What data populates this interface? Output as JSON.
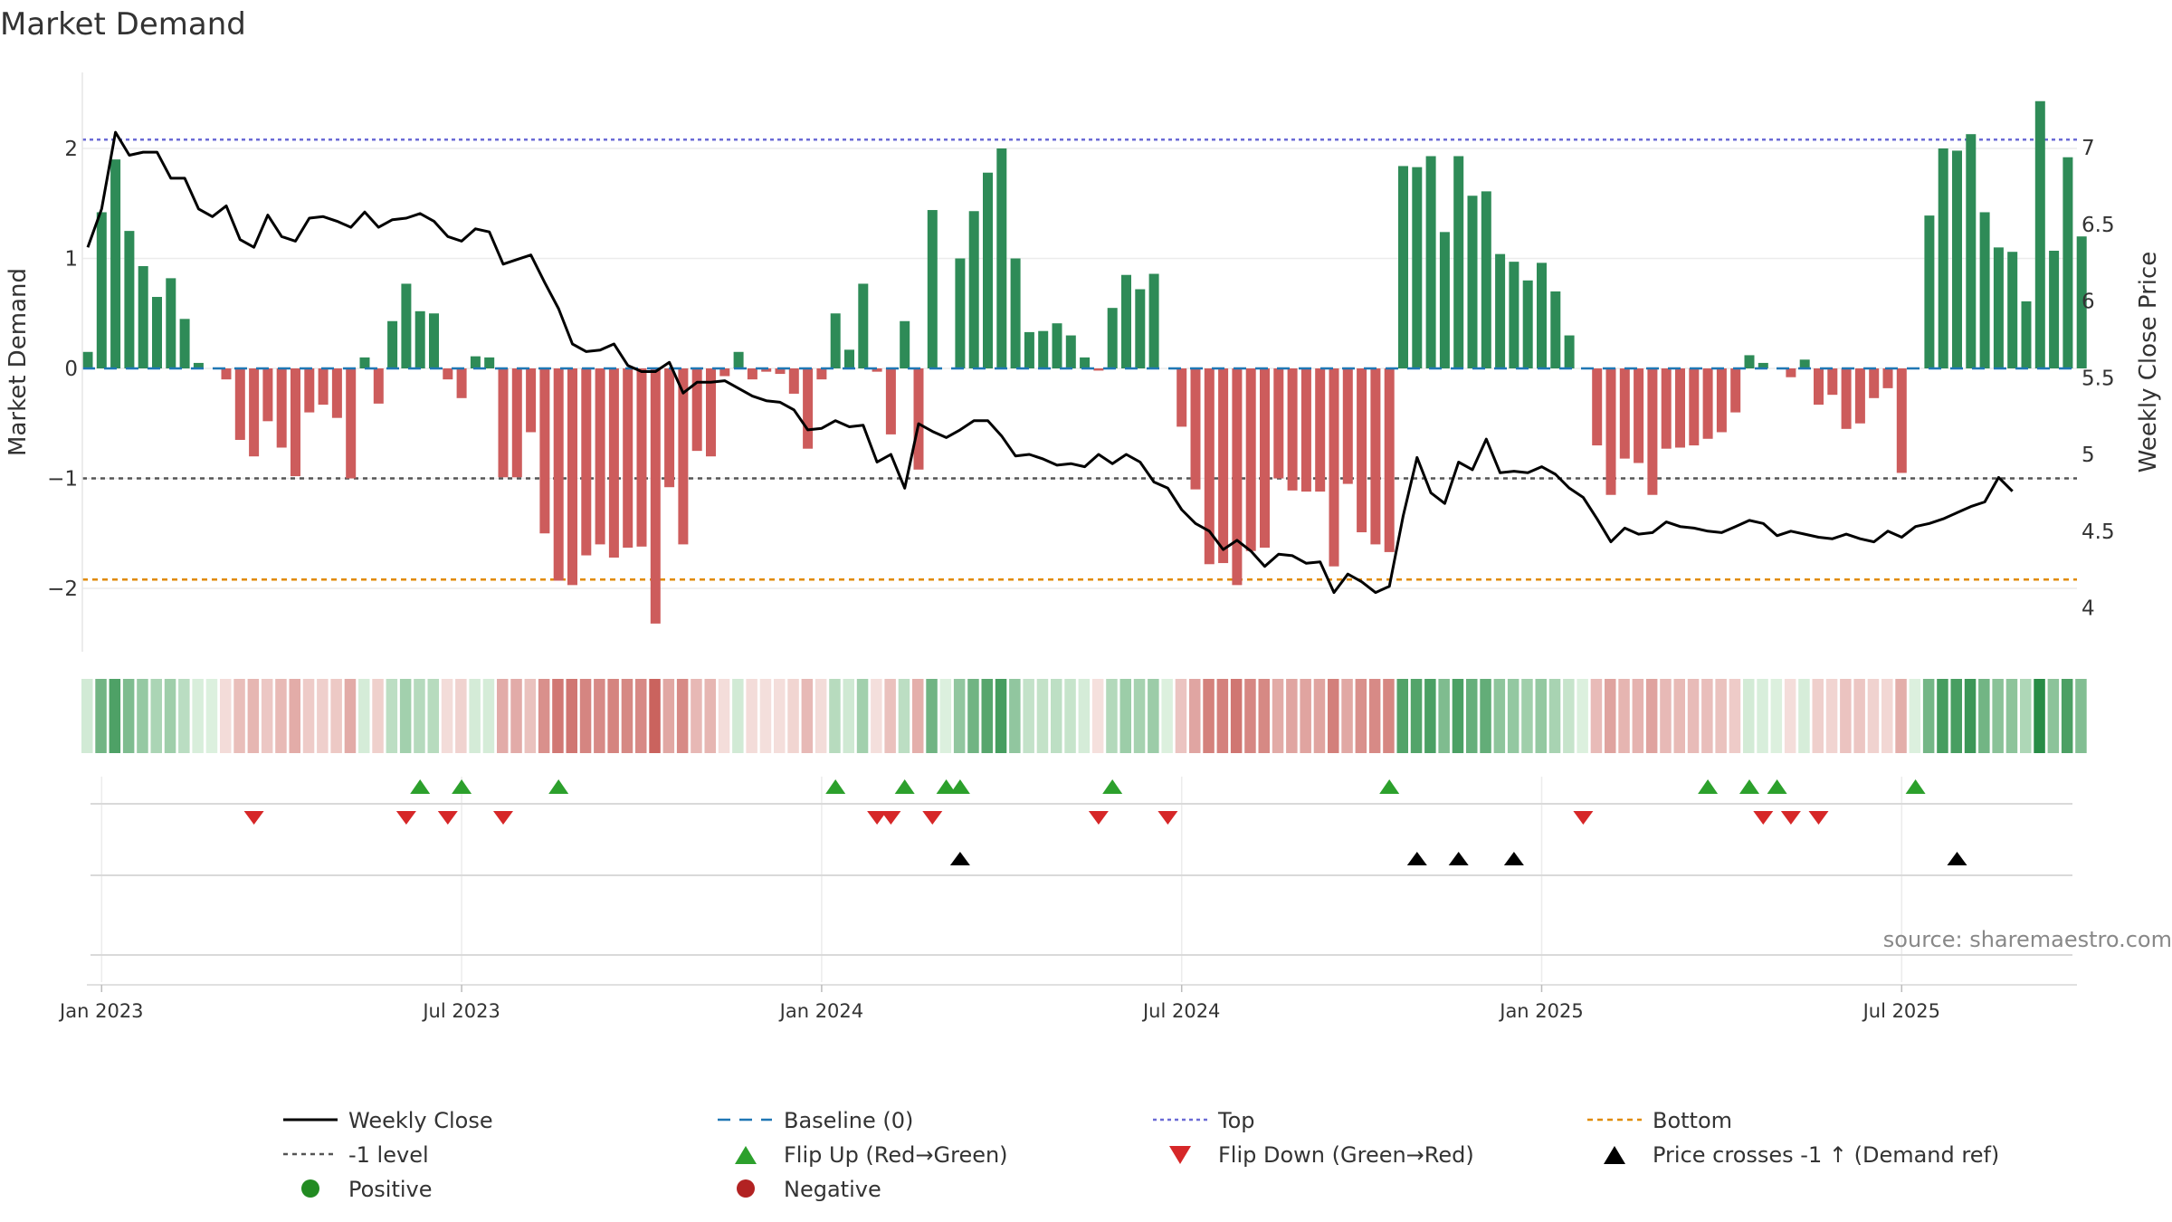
{
  "chart_data": [
    {
      "type": "bar",
      "title": "Market Demand",
      "ylabel": "Market Demand",
      "y2label": "Weekly Close Price",
      "ylim": [
        -2.6,
        2.7
      ],
      "y2lim": [
        3.85,
        7.35
      ],
      "yticks": [
        "2",
        "1",
        "0",
        "−1",
        "−2"
      ],
      "ytick_values": [
        2,
        1,
        0,
        -1,
        -2
      ],
      "y2ticks": [
        "7",
        "6.5",
        "6",
        "5.5",
        "5",
        "4.5",
        "4"
      ],
      "y2tick_values": [
        7,
        6.5,
        6,
        5.5,
        5,
        4.5,
        4
      ],
      "x_start_week_index": 0,
      "xticks": [
        "Jan 2023",
        "Jul 2023",
        "Jan 2024",
        "Jul 2024",
        "Jan 2025",
        "Jul 2025"
      ],
      "xtick_weeks": [
        1,
        27,
        53,
        79,
        105,
        131
      ],
      "reference_lines": {
        "baseline": 0,
        "top": 2.08,
        "minus_one": -1,
        "bottom": -1.92
      },
      "bar_values": [
        0.15,
        1.42,
        1.9,
        1.25,
        0.93,
        0.65,
        0.82,
        0.45,
        0.05,
        0,
        -0.1,
        -0.65,
        -0.8,
        -0.48,
        -0.72,
        -0.98,
        -0.4,
        -0.33,
        -0.45,
        -1.0,
        0.1,
        -0.32,
        0.43,
        0.77,
        0.52,
        0.5,
        -0.1,
        -0.27,
        0.11,
        0.1,
        -0.99,
        -0.99,
        -0.58,
        -1.5,
        -1.93,
        -1.97,
        -1.7,
        -1.6,
        -1.72,
        -1.63,
        -1.62,
        -2.32,
        -1.08,
        -1.6,
        -0.75,
        -0.8,
        -0.07,
        0.15,
        -0.1,
        -0.03,
        -0.05,
        -0.23,
        -0.73,
        -0.1,
        0.5,
        0.17,
        0.77,
        -0.03,
        -0.6,
        0.43,
        -0.92,
        1.44,
        0,
        1.0,
        1.43,
        1.78,
        2.0,
        1.0,
        0.33,
        0.34,
        0.41,
        0.3,
        0.1,
        -0.02,
        0.55,
        0.85,
        0.72,
        0.86,
        0,
        -0.53,
        -1.1,
        -1.78,
        -1.77,
        -1.97,
        -1.66,
        -1.63,
        -1.0,
        -1.11,
        -1.12,
        -1.12,
        -1.8,
        -1.05,
        -1.49,
        -1.6,
        -1.67,
        1.84,
        1.83,
        1.93,
        1.24,
        1.93,
        1.57,
        1.61,
        1.04,
        0.97,
        0.8,
        0.96,
        0.7,
        0.3,
        0,
        -0.7,
        -1.15,
        -0.82,
        -0.86,
        -1.15,
        -0.73,
        -0.72,
        -0.7,
        -0.64,
        -0.58,
        -0.4,
        0.12,
        0.05,
        0,
        -0.08,
        0.08,
        -0.33,
        -0.24,
        -0.55,
        -0.5,
        -0.27,
        -0.18,
        -0.95,
        0,
        1.39,
        2.0,
        1.98,
        2.13,
        1.42,
        1.1,
        1.06,
        0.61,
        2.43,
        1.07,
        1.92,
        1.2
      ],
      "price_values": [
        6.35,
        6.6,
        7.1,
        6.95,
        6.97,
        6.97,
        6.8,
        6.8,
        6.6,
        6.55,
        6.62,
        6.4,
        6.35,
        6.56,
        6.42,
        6.39,
        6.54,
        6.55,
        6.52,
        6.48,
        6.58,
        6.48,
        6.53,
        6.54,
        6.57,
        6.52,
        6.42,
        6.39,
        6.47,
        6.45,
        6.24,
        6.27,
        6.3,
        6.12,
        5.95,
        5.72,
        5.67,
        5.68,
        5.72,
        5.58,
        5.54,
        5.54,
        5.6,
        5.4,
        5.47,
        5.47,
        5.48,
        5.43,
        5.38,
        5.35,
        5.34,
        5.29,
        5.16,
        5.17,
        5.22,
        5.18,
        5.19,
        4.95,
        5.0,
        4.78,
        5.2,
        5.15,
        5.11,
        5.16,
        5.22,
        5.22,
        5.12,
        4.99,
        5.0,
        4.97,
        4.93,
        4.94,
        4.92,
        5.0,
        4.94,
        5.0,
        4.95,
        4.82,
        4.78,
        4.64,
        4.55,
        4.5,
        4.38,
        4.44,
        4.37,
        4.27,
        4.35,
        4.34,
        4.29,
        4.3,
        4.1,
        4.22,
        4.17,
        4.1,
        4.14,
        4.6,
        4.98,
        4.75,
        4.68,
        4.95,
        4.9,
        5.1,
        4.88,
        4.89,
        4.88,
        4.92,
        4.87,
        4.78,
        4.72,
        4.58,
        4.43,
        4.52,
        4.48,
        4.49,
        4.56,
        4.53,
        4.52,
        4.5,
        4.49,
        4.53,
        4.57,
        4.55,
        4.47,
        4.5,
        4.48,
        4.46,
        4.45,
        4.48,
        4.45,
        4.43,
        4.5,
        4.46,
        4.53,
        4.55,
        4.58,
        4.62,
        4.66,
        4.69,
        4.85,
        4.76
      ],
      "flip_up_weeks": [
        24,
        27,
        34,
        54,
        59,
        62,
        63,
        74,
        94,
        117,
        120,
        122,
        132
      ],
      "flip_down_weeks": [
        12,
        23,
        26,
        30,
        57,
        58,
        61,
        73,
        78,
        108,
        121,
        123,
        125
      ],
      "cross_up_weeks": [
        63,
        96,
        99,
        103,
        135
      ]
    }
  ],
  "legend": {
    "weekly_close": "Weekly Close",
    "baseline": "Baseline (0)",
    "top": "Top",
    "bottom": "Bottom",
    "minus_one": "-1 level",
    "flip_up": "Flip Up (Red→Green)",
    "flip_down": "Flip Down (Green→Red)",
    "cross": "Price crosses -1 ↑ (Demand ref)",
    "positive": "Positive",
    "negative": "Negative"
  },
  "source": "source: sharemaestro.com",
  "colors": {
    "positive": "#2e8b57",
    "negative": "#cd5c5c",
    "price": "#000000",
    "baseline": "#1f77b4",
    "top": "#6b6bd6",
    "bottom": "#e08a00",
    "minus_one": "#555555",
    "flip_up": "#2ca02c",
    "flip_down": "#d62728",
    "cross": "#000000",
    "positive_dot": "#228b22",
    "negative_dot": "#b22222"
  }
}
